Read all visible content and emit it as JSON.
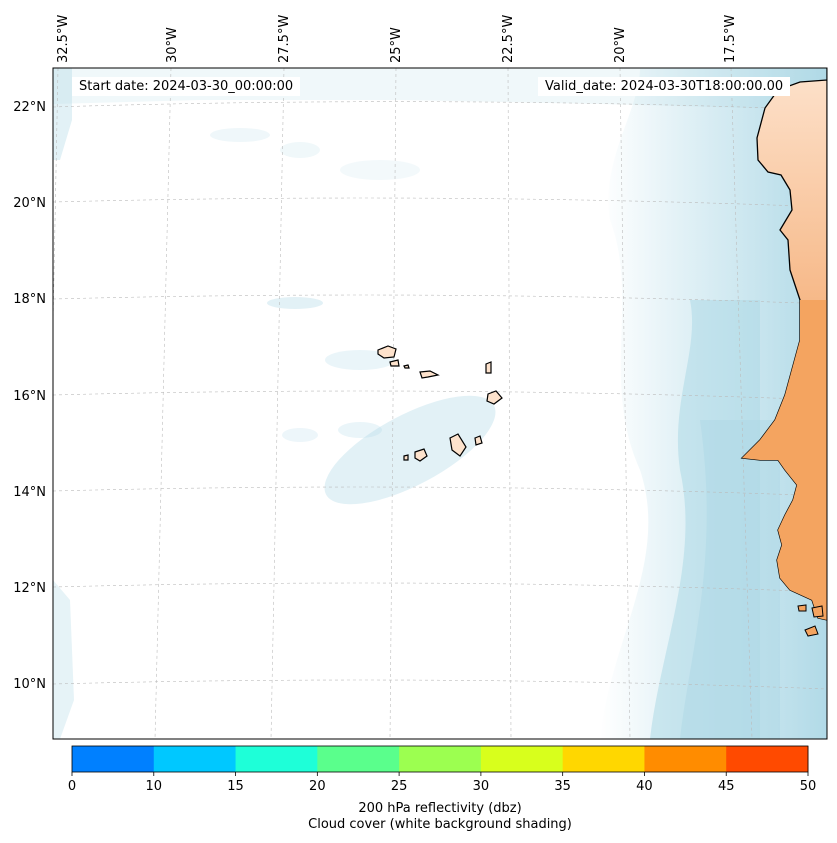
{
  "start_date": "Start date: 2024-03-30_00:00:00",
  "valid_date": "Valid_date: 2024-03-30T18:00:00.00",
  "lon_labels": [
    "32.5°W",
    "30°W",
    "27.5°W",
    "25°W",
    "22.5°W",
    "20°W",
    "17.5°W"
  ],
  "lat_labels": [
    "22°N",
    "20°N",
    "18°N",
    "16°N",
    "14°N",
    "12°N",
    "10°N"
  ],
  "colorbar": {
    "ticks": [
      "0",
      "10",
      "15",
      "20",
      "25",
      "30",
      "35",
      "40",
      "45",
      "50"
    ],
    "colors": [
      "#0080ff",
      "#00c8ff",
      "#1effd8",
      "#5aff8c",
      "#9cff50",
      "#d8ff1c",
      "#ffd700",
      "#ff8c00",
      "#ff4a00"
    ],
    "label": "200 hPa reflectivity (dbz)",
    "sublabel": "Cloud cover (white background shading)"
  },
  "colors": {
    "land": "#f4a460",
    "cloud": "#add8e6",
    "grid": "#bbbbbb"
  }
}
